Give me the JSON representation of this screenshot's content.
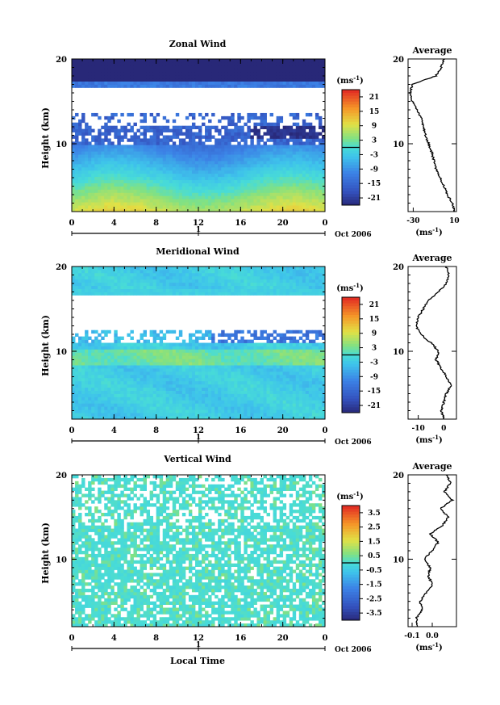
{
  "chart_data": [
    {
      "type": "heatmap",
      "title": "Zonal Wind",
      "ylabel": "Height (km)",
      "ylim": [
        2,
        20
      ],
      "yticks": [
        "20",
        "10"
      ],
      "xticks": [
        "0",
        "4",
        "8",
        "12",
        "16",
        "20",
        "0"
      ],
      "day_label": "1",
      "date_label": "Oct 2006",
      "colorbar": {
        "unit": "(ms",
        "unit_exp": "-1",
        "unit_close": ")",
        "ticks": [
          "21",
          "15",
          "9",
          "3",
          "-3",
          "-9",
          "-15",
          "-21"
        ],
        "range": [
          -24,
          24
        ]
      },
      "profile": {
        "title": "Average",
        "xticks": [
          "-30",
          "10"
        ],
        "xlim": [
          -35,
          12
        ],
        "unit": "(ms",
        "unit_exp": "-1",
        "unit_close": ")",
        "heights": [
          2,
          3,
          4,
          5,
          6,
          7,
          8,
          9,
          10,
          11,
          12,
          13,
          14,
          15,
          16,
          17,
          18,
          19,
          20
        ],
        "values": [
          10,
          8,
          3,
          0,
          -4,
          -8,
          -10,
          -12,
          -15,
          -18,
          -20,
          -22,
          -26,
          -31,
          -33,
          -31,
          -8,
          -3,
          0
        ]
      }
    },
    {
      "type": "heatmap",
      "title": "Meridional Wind",
      "ylabel": "Height (km)",
      "ylim": [
        2,
        20
      ],
      "yticks": [
        "20",
        "10"
      ],
      "xticks": [
        "0",
        "4",
        "8",
        "12",
        "16",
        "20",
        "0"
      ],
      "day_label": "1",
      "date_label": "Oct 2006",
      "colorbar": {
        "unit": "(ms",
        "unit_exp": "-1",
        "unit_close": ")",
        "ticks": [
          "21",
          "15",
          "9",
          "3",
          "-3",
          "-9",
          "-15",
          "-21"
        ],
        "range": [
          -24,
          24
        ]
      },
      "profile": {
        "title": "Average",
        "xticks": [
          "-10",
          "0"
        ],
        "xlim": [
          -14,
          5
        ],
        "unit": "(ms",
        "unit_exp": "-1",
        "unit_close": ")",
        "heights": [
          2,
          3,
          4,
          5,
          6,
          7,
          8,
          9,
          10,
          11,
          12,
          13,
          14,
          15,
          16,
          17,
          18,
          19,
          20
        ],
        "values": [
          0,
          -1,
          0,
          1,
          3,
          1,
          -1,
          -3,
          -2,
          -5,
          -9,
          -11,
          -10,
          -8,
          -6,
          -2,
          1,
          2,
          1
        ]
      }
    },
    {
      "type": "heatmap",
      "title": "Vertical Wind",
      "ylabel": "Height (km)",
      "xlabel": "Local Time",
      "ylim": [
        2,
        20
      ],
      "yticks": [
        "20",
        "10"
      ],
      "xticks": [
        "0",
        "4",
        "8",
        "12",
        "16",
        "20",
        "0"
      ],
      "day_label": "1",
      "date_label": "Oct 2006",
      "colorbar": {
        "unit": "(ms",
        "unit_exp": "-1",
        "unit_close": ")",
        "ticks": [
          "3.5",
          "2.5",
          "1.5",
          "0.5",
          "-0.5",
          "-1.5",
          "-2.5",
          "-3.5"
        ],
        "range": [
          -4,
          4
        ]
      },
      "profile": {
        "title": "Average",
        "xticks": [
          "-0.1",
          "0.0"
        ],
        "xlim": [
          -0.12,
          0.12
        ],
        "unit": "(ms",
        "unit_exp": "-1",
        "unit_close": ")",
        "heights": [
          2,
          3,
          4,
          5,
          6,
          7,
          8,
          9,
          10,
          11,
          12,
          13,
          14,
          15,
          16,
          17,
          18,
          19,
          20
        ],
        "values": [
          -0.07,
          -0.08,
          -0.05,
          -0.06,
          -0.03,
          0.0,
          -0.02,
          -0.01,
          -0.04,
          0.0,
          0.03,
          -0.01,
          0.05,
          0.08,
          0.04,
          0.1,
          0.06,
          0.09,
          0.07
        ]
      }
    }
  ]
}
